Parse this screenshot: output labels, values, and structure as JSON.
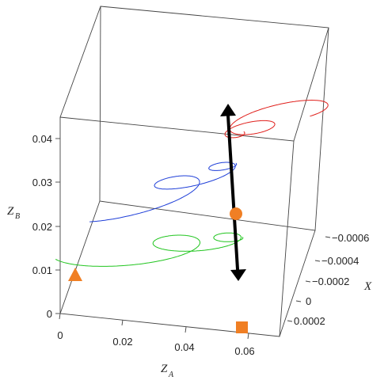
{
  "chart_data": {
    "type": "line",
    "dimensions": "3d",
    "title": "",
    "axes": {
      "x": {
        "label": "Z",
        "label_sub": "A",
        "ticks": [
          "0",
          "0.02",
          "0.04",
          "0.06"
        ],
        "range": [
          0,
          0.07
        ]
      },
      "y": {
        "label": "X",
        "label_sub": "",
        "ticks": [
          "−0.0006",
          "−0.0004",
          "−0.0002",
          "0",
          "0.0002"
        ],
        "range": [
          -0.0007,
          0.0003
        ]
      },
      "z": {
        "label": "Z",
        "label_sub": "B",
        "ticks": [
          "0",
          "0.01",
          "0.02",
          "0.03",
          "0.04"
        ],
        "range": [
          0,
          0.045
        ]
      }
    },
    "grid": false,
    "series": [
      {
        "color": "#e0201c",
        "shape": "spiral",
        "approx_za_range": [
          0.045,
          0.07
        ],
        "approx_zb": 0.04
      },
      {
        "color": "#1f3fd8",
        "shape": "spiral",
        "approx_za_range": [
          0.02,
          0.065
        ],
        "approx_zb": 0.027
      },
      {
        "color": "#21c51f",
        "shape": "spiral",
        "approx_za_range": [
          0.01,
          0.07
        ],
        "approx_zb": 0.014
      }
    ],
    "markers": [
      {
        "shape": "triangle",
        "color": "#f07f24"
      },
      {
        "shape": "square",
        "color": "#f07f24"
      },
      {
        "shape": "circle",
        "color": "#f07f24"
      }
    ],
    "arrow": {
      "color": "#000000",
      "direction": "both"
    }
  }
}
